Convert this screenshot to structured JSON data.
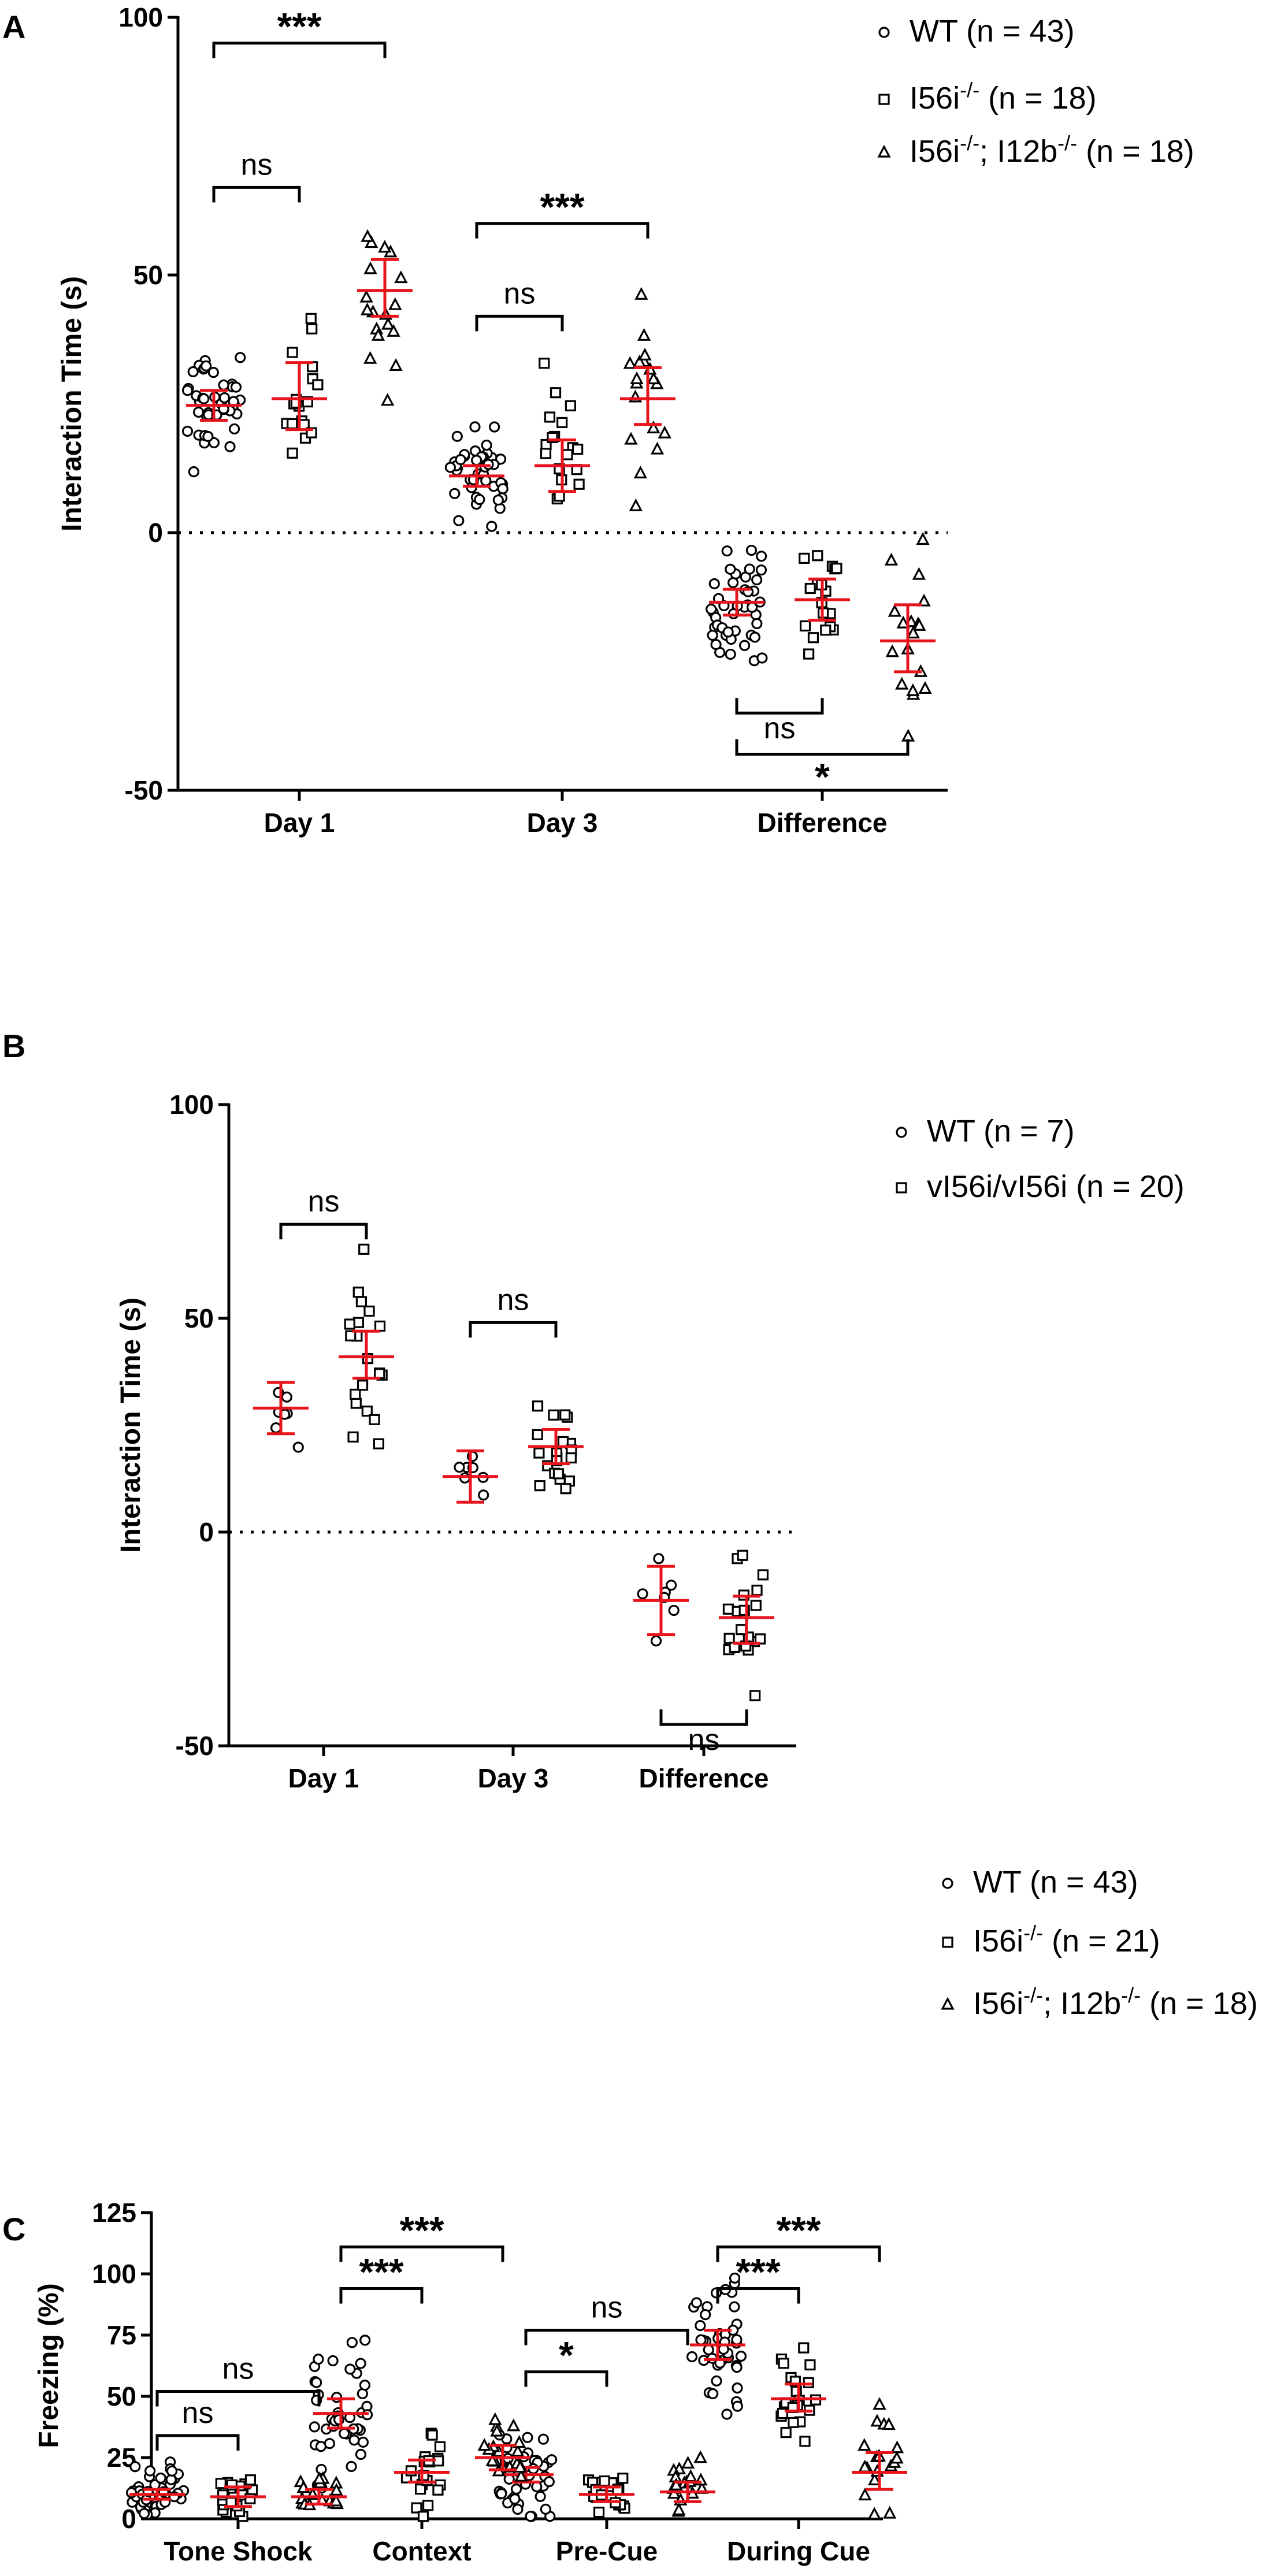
{
  "chart_data": [
    {
      "panel": "A",
      "type": "scatter",
      "ylabel": "Interaction Time (s)",
      "ylim": [
        -50,
        100
      ],
      "yticks": [
        "100",
        "50",
        "0",
        "-50"
      ],
      "categories": [
        "Day 1",
        "Day 3",
        "Difference"
      ],
      "reference_line": 0,
      "series": [
        {
          "name": "WT (n = 43)",
          "marker": "circle",
          "n": 43,
          "mean": [
            24.7,
            11,
            -13.5
          ],
          "ci": [
            [
              21.8,
              27.6
            ],
            [
              9,
              13
            ],
            [
              -16,
              -11
            ]
          ],
          "spread": [
            7,
            6,
            7
          ]
        },
        {
          "name": "I56i-/- (n = 18)",
          "legend_main": "I56i",
          "legend_sup": "-/-",
          "legend_rest": " (n = 18)",
          "marker": "square",
          "n": 18,
          "mean": [
            26,
            13,
            -13
          ],
          "ci": [
            [
              20,
              33
            ],
            [
              8,
              18
            ],
            [
              -17,
              -9
            ]
          ],
          "spread": [
            11,
            9,
            6
          ]
        },
        {
          "name": "I56i-/-; I12b-/- (n = 18)",
          "legend_main": "I56i",
          "legend_sup": "-/-",
          "legend_mid": "; I12b",
          "legend_sup2": "-/-",
          "legend_rest": " (n = 18)",
          "marker": "triangle",
          "n": 18,
          "mean": [
            47,
            26,
            -21
          ],
          "ci": [
            [
              42,
              53
            ],
            [
              21,
              32
            ],
            [
              -27,
              -14
            ]
          ],
          "spread": [
            10,
            11,
            12
          ]
        }
      ],
      "significance": [
        {
          "label": "***",
          "category": 0,
          "from": 0,
          "to": 2,
          "level": 95
        },
        {
          "label": "ns",
          "category": 0,
          "from": 0,
          "to": 1,
          "level": 67
        },
        {
          "label": "***",
          "category": 1,
          "from": 0,
          "to": 2,
          "level": 60
        },
        {
          "label": "ns",
          "category": 1,
          "from": 0,
          "to": 1,
          "level": 42
        },
        {
          "label": "ns",
          "category": 2,
          "from": 0,
          "to": 1,
          "level": -35,
          "down": true
        },
        {
          "label": "*",
          "category": 2,
          "from": 0,
          "to": 2,
          "level": -43,
          "down": true
        }
      ]
    },
    {
      "panel": "B",
      "type": "scatter",
      "ylabel": "Interaction Time (s)",
      "ylim": [
        -50,
        100
      ],
      "yticks": [
        "100",
        "50",
        "0",
        "-50"
      ],
      "categories": [
        "Day 1",
        "Day 3",
        "Difference"
      ],
      "reference_line": 0,
      "series": [
        {
          "name": "WT (n = 7)",
          "marker": "circle",
          "n": 7,
          "mean": [
            29,
            13,
            -16
          ],
          "ci": [
            [
              23,
              35
            ],
            [
              7,
              19
            ],
            [
              -24,
              -8
            ]
          ],
          "spread": [
            5,
            6,
            7
          ]
        },
        {
          "name": "vI56i/vI56i (n = 20)",
          "marker": "square",
          "n": 20,
          "mean": [
            41,
            20,
            -20
          ],
          "ci": [
            [
              36,
              47
            ],
            [
              16,
              24
            ],
            [
              -26,
              -15
            ]
          ],
          "spread": [
            12,
            7,
            9
          ]
        }
      ],
      "significance": [
        {
          "label": "ns",
          "category": 0,
          "from": 0,
          "to": 1,
          "level": 72
        },
        {
          "label": "ns",
          "category": 1,
          "from": 0,
          "to": 1,
          "level": 49
        },
        {
          "label": "ns",
          "category": 2,
          "from": 0,
          "to": 1,
          "level": -45,
          "down": true
        }
      ]
    },
    {
      "panel": "C",
      "type": "scatter",
      "ylabel": "Freezing (%)",
      "ylim": [
        0,
        125
      ],
      "yticks": [
        "125",
        "100",
        "75",
        "50",
        "25",
        "0"
      ],
      "categories": [
        "Tone Shock",
        "Context",
        "Pre-Cue",
        "During Cue"
      ],
      "series": [
        {
          "name": "WT (n = 43)",
          "marker": "circle",
          "n": 43,
          "mean": [
            10,
            43,
            18,
            71
          ],
          "ci": [
            [
              8,
              12
            ],
            [
              37,
              49
            ],
            [
              15,
              21
            ],
            [
              65,
              77
            ]
          ],
          "spread": [
            7,
            18,
            13,
            17
          ]
        },
        {
          "name": "I56i-/- (n = 21)",
          "legend_main": "I56i",
          "legend_sup": "-/-",
          "legend_rest": " (n = 21)",
          "marker": "square",
          "n": 21,
          "mean": [
            9,
            19,
            10,
            49
          ],
          "ci": [
            [
              5,
              13
            ],
            [
              15,
              24
            ],
            [
              7,
              13
            ],
            [
              44,
              55
            ]
          ],
          "spread": [
            7,
            10,
            5,
            12
          ]
        },
        {
          "name": "I56i-/-; I12b-/- (n = 18)",
          "legend_main": "I56i",
          "legend_sup": "-/-",
          "legend_mid": "; I12b",
          "legend_sup2": "-/-",
          "legend_rest": " (n = 18)",
          "marker": "triangle",
          "n": 18,
          "mean": [
            9,
            25,
            11,
            19
          ],
          "ci": [
            [
              6,
              12
            ],
            [
              20,
              30
            ],
            [
              7,
              15
            ],
            [
              12,
              27
            ]
          ],
          "spread": [
            6,
            10,
            8,
            15
          ]
        }
      ],
      "significance": [
        {
          "label": "ns",
          "category": 0,
          "from": 0,
          "to": 2,
          "level": 52
        },
        {
          "label": "ns",
          "category": 0,
          "from": 0,
          "to": 1,
          "level": 34
        },
        {
          "label": "***",
          "category": 1,
          "from": 0,
          "to": 2,
          "level": 111
        },
        {
          "label": "***",
          "category": 1,
          "from": 0,
          "to": 1,
          "level": 94
        },
        {
          "label": "ns",
          "category": 2,
          "from": 0,
          "to": 2,
          "level": 77
        },
        {
          "label": "*",
          "category": 2,
          "from": 0,
          "to": 1,
          "level": 60
        },
        {
          "label": "***",
          "category": 3,
          "from": 0,
          "to": 2,
          "level": 111
        },
        {
          "label": "***",
          "category": 3,
          "from": 0,
          "to": 1,
          "level": 94
        }
      ]
    }
  ]
}
